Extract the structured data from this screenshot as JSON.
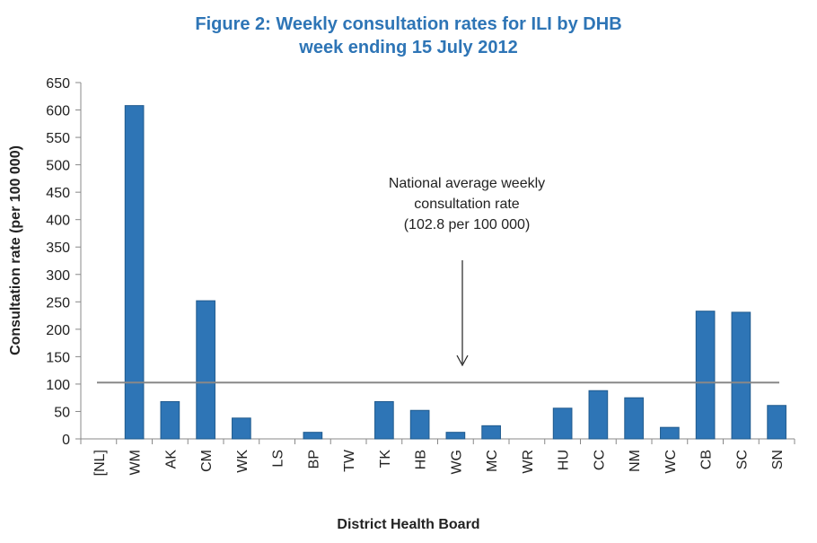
{
  "chart_data": {
    "type": "bar",
    "title": "Figure 2: Weekly consultation rates for ILI by DHB",
    "subtitle": "week ending 15 July 2012",
    "xlabel": "District Health Board",
    "ylabel": "Consultation rate (per 100 000)",
    "ylim": [
      0,
      650
    ],
    "yticks": [
      "0",
      "50",
      "100",
      "150",
      "200",
      "250",
      "300",
      "350",
      "400",
      "450",
      "500",
      "550",
      "600",
      "650"
    ],
    "categories": [
      "[NL]",
      "WM",
      "AK",
      "CM",
      "WK",
      "LS",
      "BP",
      "TW",
      "TK",
      "HB",
      "WG",
      "MC",
      "WR",
      "HU",
      "CC",
      "NM",
      "WC",
      "CB",
      "SC",
      "SN"
    ],
    "values": [
      0,
      608,
      68,
      252,
      38,
      0,
      12,
      0,
      68,
      52,
      12,
      24,
      0,
      56,
      88,
      75,
      21,
      233,
      231,
      61
    ],
    "bar_color": "#2e75b6",
    "reference_line": {
      "value": 102.8,
      "color": "#888888"
    },
    "annotation": {
      "lines": [
        "National average weekly",
        "consultation rate",
        "(102.8 per 100 000)"
      ]
    },
    "grid": false,
    "legend": "none"
  }
}
